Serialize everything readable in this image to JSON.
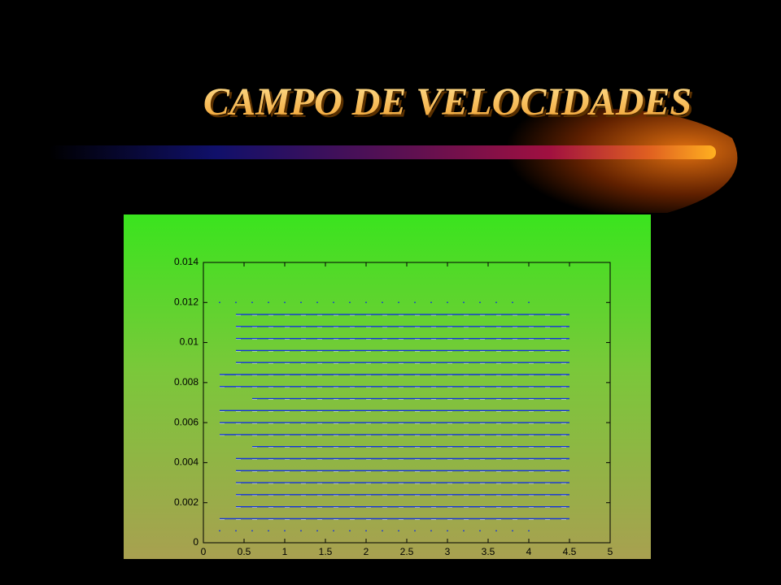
{
  "chart_data": {
    "type": "quiver",
    "title": "CAMPO DE VELOCIDADES",
    "color": "#1030e0",
    "xlim": [
      0,
      5
    ],
    "xticks": [
      0,
      0.5,
      1,
      1.5,
      2,
      2.5,
      3,
      3.5,
      4,
      4.5,
      5
    ],
    "ylim": [
      0,
      0.014
    ],
    "yticks": [
      0,
      0.002,
      0.004,
      0.006,
      0.008,
      0.01,
      0.012,
      0.014
    ],
    "rows": [
      {
        "y": 0.0012,
        "x0": 0.2,
        "x1": 4.5
      },
      {
        "y": 0.0018,
        "x0": 0.4,
        "x1": 4.5
      },
      {
        "y": 0.0024,
        "x0": 0.4,
        "x1": 4.5
      },
      {
        "y": 0.003,
        "x0": 0.4,
        "x1": 4.5
      },
      {
        "y": 0.0036,
        "x0": 0.4,
        "x1": 4.5
      },
      {
        "y": 0.0042,
        "x0": 0.4,
        "x1": 4.5
      },
      {
        "y": 0.0048,
        "x0": 0.6,
        "x1": 4.5
      },
      {
        "y": 0.0054,
        "x0": 0.2,
        "x1": 4.5
      },
      {
        "y": 0.006,
        "x0": 0.2,
        "x1": 4.5
      },
      {
        "y": 0.0066,
        "x0": 0.2,
        "x1": 4.5
      },
      {
        "y": 0.0072,
        "x0": 0.6,
        "x1": 4.5
      },
      {
        "y": 0.0078,
        "x0": 0.2,
        "x1": 4.5
      },
      {
        "y": 0.0084,
        "x0": 0.2,
        "x1": 4.5
      },
      {
        "y": 0.009,
        "x0": 0.4,
        "x1": 4.5
      },
      {
        "y": 0.0096,
        "x0": 0.4,
        "x1": 4.5
      },
      {
        "y": 0.0102,
        "x0": 0.4,
        "x1": 4.5
      },
      {
        "y": 0.0108,
        "x0": 0.4,
        "x1": 4.5
      },
      {
        "y": 0.0114,
        "x0": 0.4,
        "x1": 4.5
      }
    ],
    "dots_y": [
      0.0006,
      0.012
    ],
    "dots_x": [
      0.2,
      0.4,
      0.6,
      0.8,
      1,
      1.2,
      1.4,
      1.6,
      1.8,
      2,
      2.2,
      2.4,
      2.6,
      2.8,
      3,
      3.2,
      3.4,
      3.6,
      3.8,
      4
    ]
  }
}
